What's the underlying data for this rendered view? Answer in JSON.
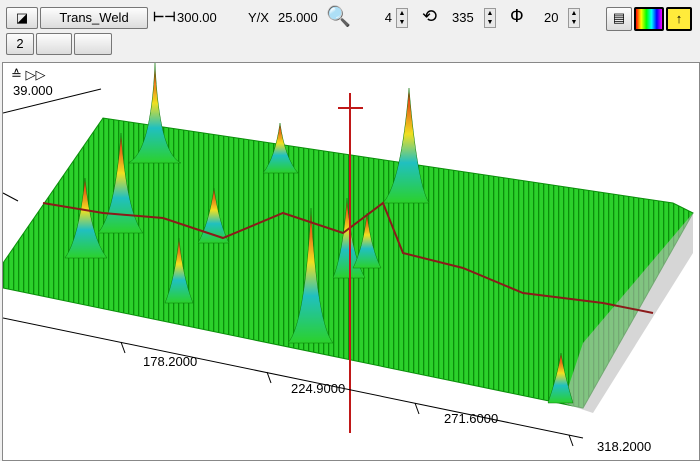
{
  "toolbar": {
    "profile_button": "Trans_Weld",
    "width_value": "300.00",
    "ratio_label": "Y/X",
    "ratio_value": "25.000",
    "zoom_value": "4",
    "rotation_value": "335",
    "tilt_value": "20",
    "page_button": "2"
  },
  "plot": {
    "y_axis_label": "39.000",
    "x_axis_labels": [
      "178.2000",
      "224.9000",
      "271.6000",
      "318.2000"
    ]
  }
}
